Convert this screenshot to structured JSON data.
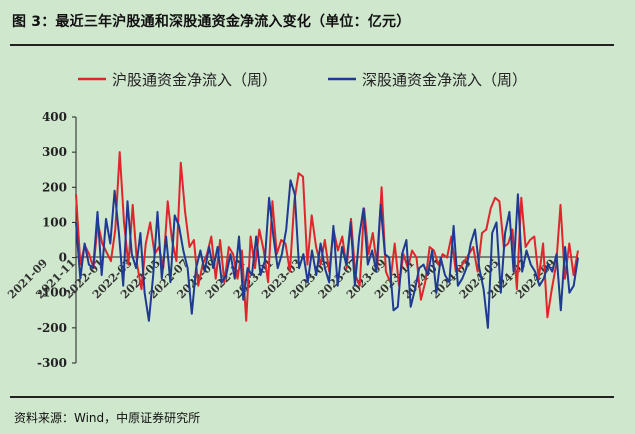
{
  "figure": {
    "title": "图 3：最近三年沪股通和深股通资金净流入变化（单位：亿元）",
    "source": "资料来源：Wind，中原证券研究所"
  },
  "colors": {
    "sh": "#e0262b",
    "sz": "#1f3a93",
    "background": "#cfe7cd"
  },
  "chart_data": {
    "type": "line",
    "legend_position": "top",
    "grid": false,
    "ylim": [
      -300,
      400
    ],
    "yticks": [
      -300,
      -200,
      -100,
      0,
      100,
      200,
      300,
      400
    ],
    "x_tick_labels": [
      "2021-09",
      "2021-11",
      "2022-01",
      "2022-03",
      "2022-05",
      "2022-07",
      "2022-09",
      "2022-11",
      "2023-01",
      "2023-03",
      "2023-05",
      "2023-07",
      "2023-09",
      "2023-11",
      "2024-01",
      "2024-03",
      "2024-05",
      "2024-07",
      "2024-09"
    ],
    "series": [
      {
        "name": "沪股通资金净流入（周）",
        "color": "#e0262b",
        "values": [
          180,
          -20,
          35,
          10,
          -30,
          100,
          40,
          15,
          -10,
          80,
          300,
          100,
          -20,
          150,
          -20,
          -90,
          40,
          100,
          10,
          30,
          -30,
          160,
          50,
          -10,
          270,
          130,
          30,
          50,
          -80,
          -20,
          10,
          60,
          -60,
          50,
          -70,
          30,
          10,
          -60,
          20,
          -180,
          60,
          -30,
          80,
          20,
          -70,
          160,
          10,
          50,
          40,
          -40,
          160,
          240,
          230,
          -20,
          120,
          30,
          -20,
          50,
          -40,
          80,
          20,
          60,
          -30,
          110,
          -50,
          -80,
          140,
          10,
          70,
          -30,
          200,
          -40,
          -70,
          40,
          -80,
          10,
          -30,
          20,
          0,
          -120,
          -70,
          30,
          20,
          -20,
          10,
          0,
          60,
          -40,
          -30,
          -10,
          10,
          30,
          -40,
          70,
          80,
          140,
          170,
          160,
          30,
          40,
          80,
          -90,
          170,
          30,
          50,
          60,
          -60,
          40,
          -170,
          -90,
          -20,
          150,
          -60,
          40,
          -50,
          20
        ]
      },
      {
        "name": "深股通资金净流入（周）",
        "color": "#1f3a93",
        "values": [
          100,
          -60,
          40,
          -20,
          -30,
          130,
          -50,
          110,
          40,
          190,
          70,
          -80,
          160,
          10,
          -30,
          70,
          -100,
          -180,
          -50,
          130,
          -60,
          60,
          -70,
          120,
          90,
          20,
          -30,
          -160,
          -30,
          20,
          -40,
          30,
          -30,
          30,
          -70,
          -50,
          10,
          -60,
          60,
          -120,
          -30,
          -50,
          60,
          -50,
          -10,
          170,
          60,
          -30,
          10,
          80,
          220,
          180,
          -30,
          10,
          -70,
          20,
          -50,
          40,
          -30,
          -70,
          90,
          -80,
          30,
          -20,
          100,
          -80,
          60,
          140,
          -20,
          20,
          -40,
          150,
          10,
          0,
          -150,
          -140,
          10,
          50,
          -140,
          -90,
          -30,
          -20,
          -50,
          20,
          -100,
          0,
          -50,
          -70,
          90,
          -80,
          -60,
          -30,
          40,
          80,
          -30,
          -90,
          -200,
          70,
          100,
          -100,
          70,
          130,
          -40,
          180,
          -40,
          20,
          -20,
          -40,
          -80,
          -60,
          -20,
          -40,
          10,
          -150,
          30,
          -100,
          -80,
          0
        ]
      }
    ]
  }
}
